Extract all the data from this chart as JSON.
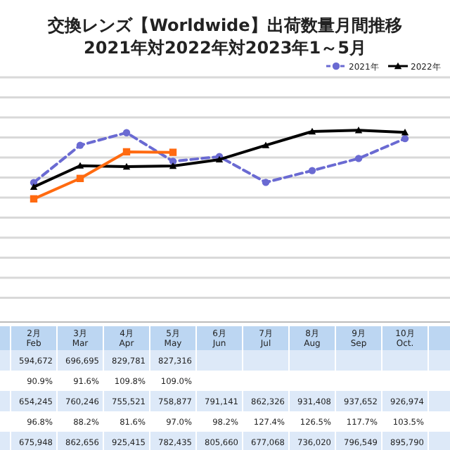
{
  "chart_data": {
    "type": "line",
    "title": "交換レンズ【Worldwide】出荷数量月間推移",
    "subtitle": "2021年対2022年対2023年1～5月",
    "categories": [
      "2月\nFeb",
      "3月\nMar",
      "4月\nApr",
      "5月\nMay",
      "6月\nJun",
      "7月\nJul",
      "8月\nAug",
      "9月\nSep",
      "10月\nOct."
    ],
    "series": [
      {
        "name": "2021年",
        "color": "#6a6ad2",
        "line_style": "dashed",
        "marker": "circle",
        "values": [
          675948,
          862656,
          925415,
          782435,
          805660,
          677068,
          736020,
          796549,
          895790
        ],
        "value_labels": [
          "675,948",
          "862,656",
          "925,415",
          "782,435",
          "805,660",
          "677,068",
          "736,020",
          "796,549",
          "895,790"
        ]
      },
      {
        "name": "2022年",
        "color": "#000000",
        "line_style": "solid",
        "marker": "triangle",
        "values": [
          654245,
          760246,
          755521,
          758877,
          791141,
          862326,
          931408,
          937652,
          926974
        ],
        "value_labels": [
          "654,245",
          "760,246",
          "755,521",
          "758,877",
          "791,141",
          "862,326",
          "931,408",
          "937,652",
          "926,974"
        ]
      },
      {
        "color": "#ff6a10",
        "line_style": "solid",
        "marker": "square",
        "values": [
          594672,
          696695,
          829781,
          827316,
          null,
          null,
          null,
          null,
          null
        ],
        "value_labels": [
          "594,672",
          "696,695",
          "829,781",
          "827,316",
          null,
          null,
          null,
          null,
          null
        ]
      }
    ],
    "grid": "y",
    "legend": "top right",
    "annotations": [
      "90.9%",
      "91.6%",
      "109.8%",
      "109.0%",
      "96.8%",
      "88.2%",
      "81.6%",
      "97.0%",
      "98.2%",
      "127.4%",
      "126.5%",
      "117.7%",
      "103.5%"
    ]
  }
}
